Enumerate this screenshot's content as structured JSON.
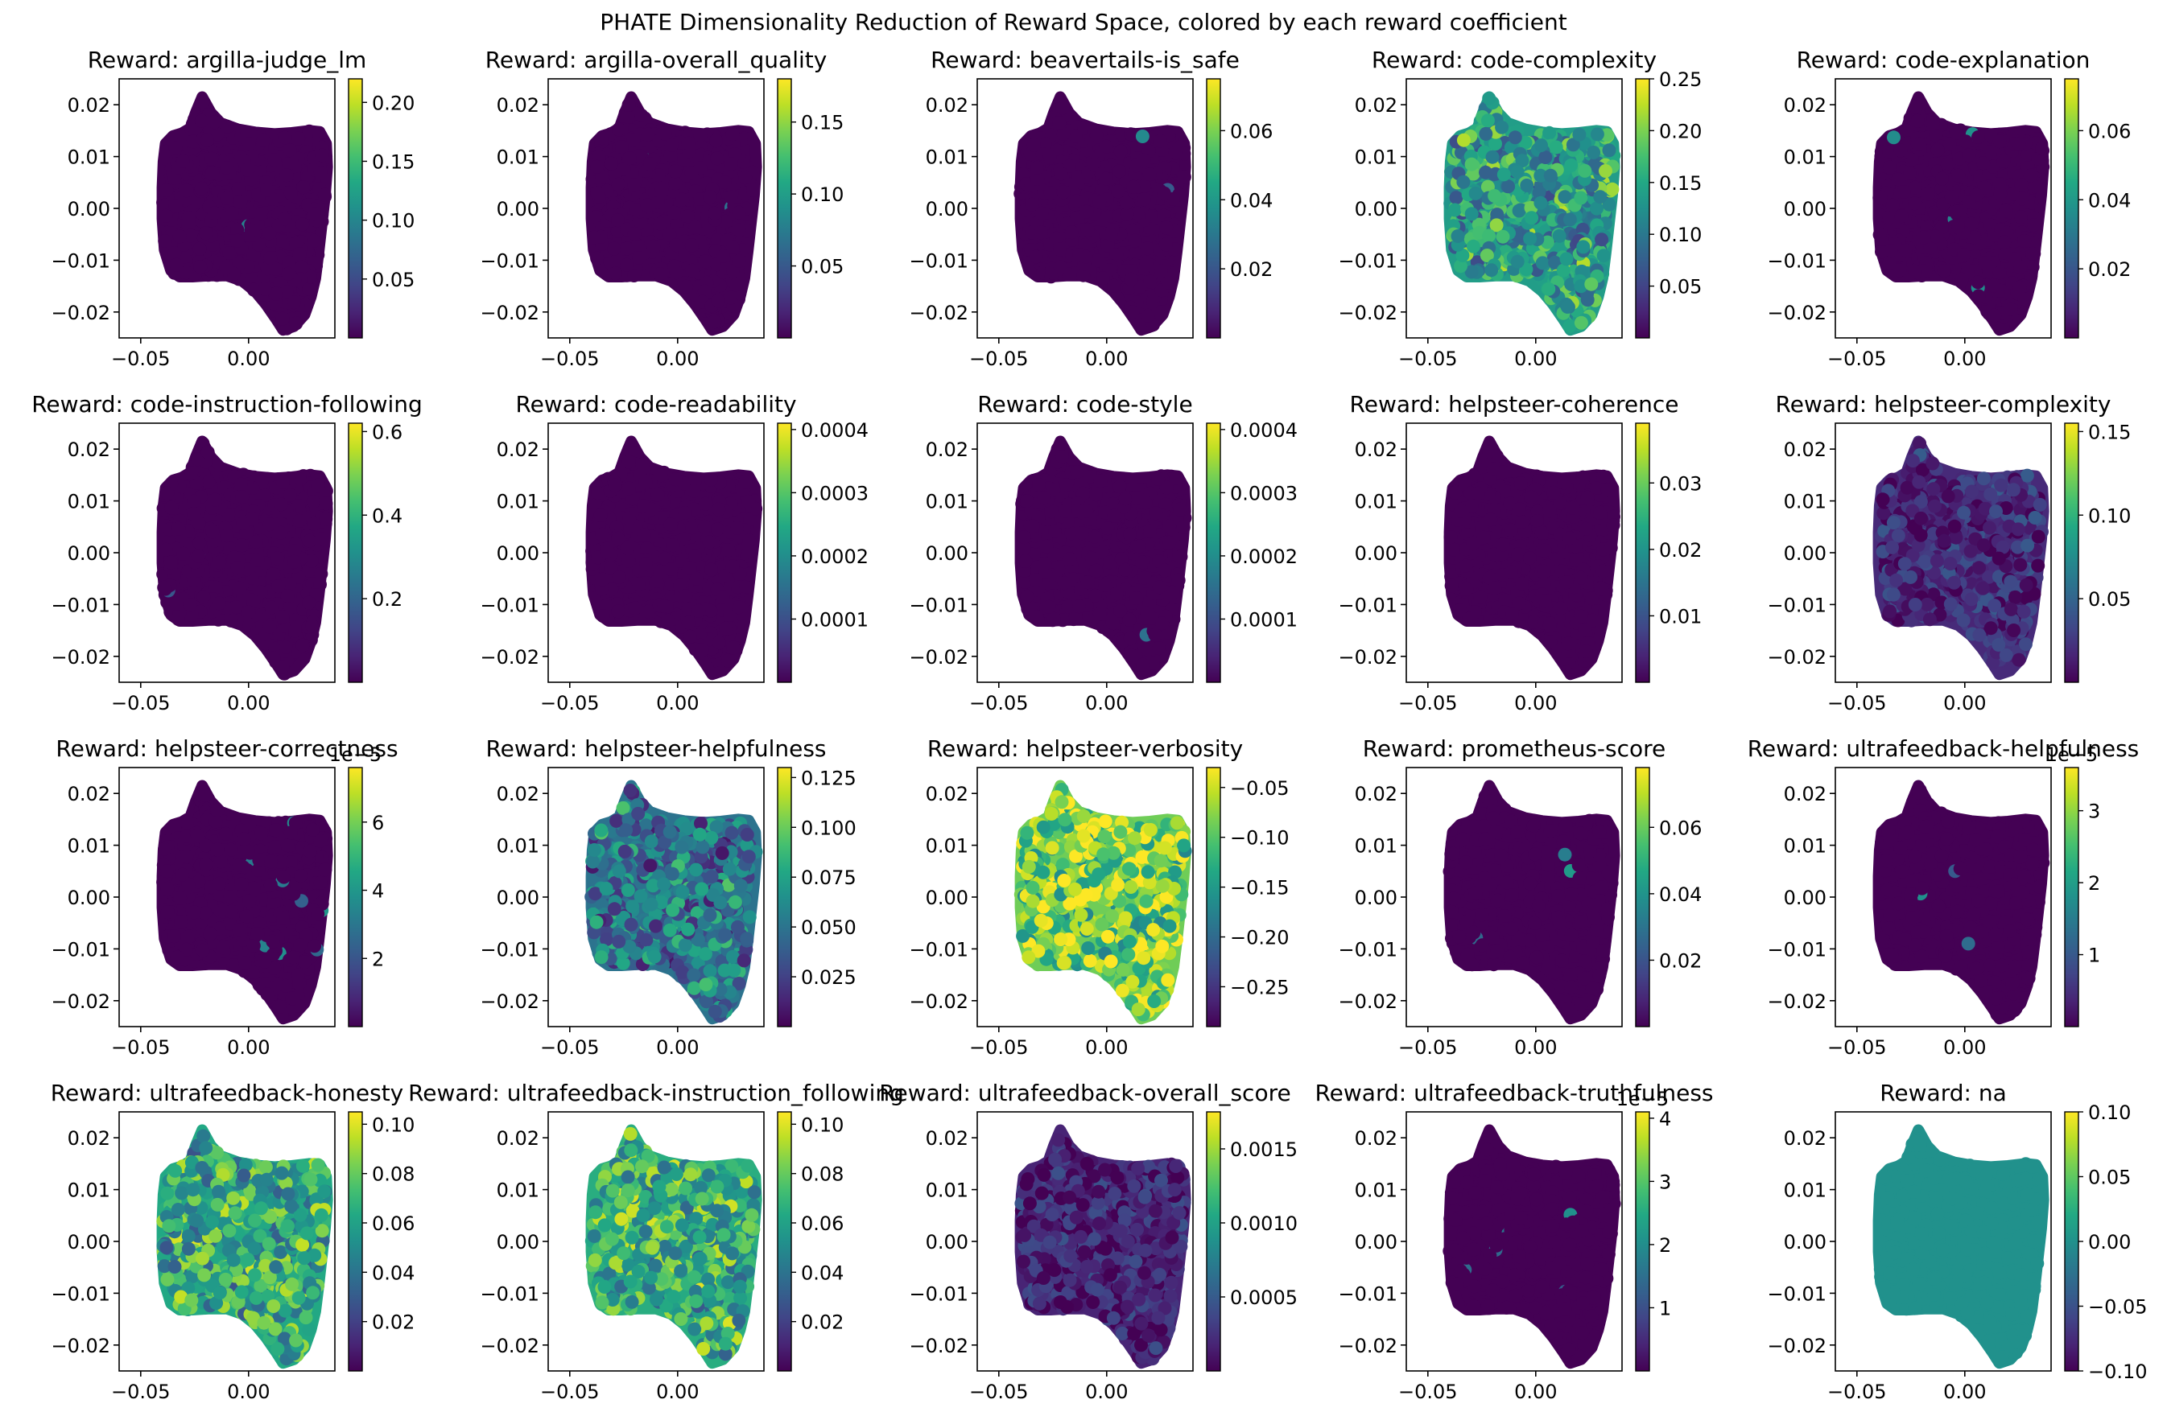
{
  "figure": {
    "title": "PHATE Dimensionality Reduction of Reward Space, colored by each reward coefficient"
  },
  "colors": {
    "viridis_stops": [
      "#440154",
      "#482475",
      "#414487",
      "#355f8d",
      "#2a788e",
      "#21918c",
      "#22a884",
      "#44bf70",
      "#7ad151",
      "#bddf26",
      "#fde725"
    ]
  },
  "chart_data": [
    {
      "type": "scatter",
      "title": "Reward: argilla-judge_lm",
      "xlim": [
        -0.06,
        0.04
      ],
      "ylim": [
        -0.025,
        0.025
      ],
      "x_ticks": [
        "-0.05",
        "0.00"
      ],
      "y_ticks": [
        "0.02",
        "0.01",
        "0.00",
        "-0.01",
        "-0.02"
      ],
      "color_range": [
        0.0,
        0.22
      ],
      "color_ticks": [
        0.05,
        0.1,
        0.15,
        0.2
      ],
      "color_tick_labels": [
        "0.05",
        "0.10",
        "0.15",
        "0.20"
      ],
      "color_offset_label": "",
      "fill_level": 0.0
    },
    {
      "type": "scatter",
      "title": "Reward: argilla-overall_quality",
      "xlim": [
        -0.06,
        0.04
      ],
      "ylim": [
        -0.025,
        0.025
      ],
      "x_ticks": [
        "-0.05",
        "0.00"
      ],
      "y_ticks": [
        "0.02",
        "0.01",
        "0.00",
        "-0.01",
        "-0.02"
      ],
      "color_range": [
        0.0,
        0.18
      ],
      "color_ticks": [
        0.05,
        0.1,
        0.15
      ],
      "color_tick_labels": [
        "0.05",
        "0.10",
        "0.15"
      ],
      "color_offset_label": "",
      "fill_level": 0.0
    },
    {
      "type": "scatter",
      "title": "Reward: beavertails-is_safe",
      "xlim": [
        -0.06,
        0.04
      ],
      "ylim": [
        -0.025,
        0.025
      ],
      "x_ticks": [
        "-0.05",
        "0.00"
      ],
      "y_ticks": [
        "0.02",
        "0.01",
        "0.00",
        "-0.01",
        "-0.02"
      ],
      "color_range": [
        0.0,
        0.075
      ],
      "color_ticks": [
        0.02,
        0.04,
        0.06
      ],
      "color_tick_labels": [
        "0.02",
        "0.04",
        "0.06"
      ],
      "color_offset_label": "",
      "fill_level": 0.0
    },
    {
      "type": "scatter",
      "title": "Reward: code-complexity",
      "xlim": [
        -0.06,
        0.04
      ],
      "ylim": [
        -0.025,
        0.025
      ],
      "x_ticks": [
        "-0.05",
        "0.00"
      ],
      "y_ticks": [
        "0.02",
        "0.01",
        "0.00",
        "-0.01",
        "-0.02"
      ],
      "color_range": [
        0.0,
        0.25
      ],
      "color_ticks": [
        0.05,
        0.1,
        0.15,
        0.2,
        0.25
      ],
      "color_tick_labels": [
        "0.05",
        "0.10",
        "0.15",
        "0.20",
        "0.25"
      ],
      "color_offset_label": "",
      "fill_level": 0.55
    },
    {
      "type": "scatter",
      "title": "Reward: code-explanation",
      "xlim": [
        -0.06,
        0.04
      ],
      "ylim": [
        -0.025,
        0.025
      ],
      "x_ticks": [
        "-0.05",
        "0.00"
      ],
      "y_ticks": [
        "0.02",
        "0.01",
        "0.00",
        "-0.01",
        "-0.02"
      ],
      "color_range": [
        0.0,
        0.075
      ],
      "color_ticks": [
        0.02,
        0.04,
        0.06
      ],
      "color_tick_labels": [
        "0.02",
        "0.04",
        "0.06"
      ],
      "color_offset_label": "",
      "fill_level": 0.0
    },
    {
      "type": "scatter",
      "title": "Reward: code-instruction-following",
      "xlim": [
        -0.06,
        0.04
      ],
      "ylim": [
        -0.025,
        0.025
      ],
      "x_ticks": [
        "-0.05",
        "0.00"
      ],
      "y_ticks": [
        "0.02",
        "0.01",
        "0.00",
        "-0.01",
        "-0.02"
      ],
      "color_range": [
        0.0,
        0.62
      ],
      "color_ticks": [
        0.2,
        0.4,
        0.6
      ],
      "color_tick_labels": [
        "0.2",
        "0.4",
        "0.6"
      ],
      "color_offset_label": "",
      "fill_level": 0.0
    },
    {
      "type": "scatter",
      "title": "Reward: code-readability",
      "xlim": [
        -0.06,
        0.04
      ],
      "ylim": [
        -0.025,
        0.025
      ],
      "x_ticks": [
        "-0.05",
        "0.00"
      ],
      "y_ticks": [
        "0.02",
        "0.01",
        "0.00",
        "-0.01",
        "-0.02"
      ],
      "color_range": [
        0.0,
        0.00041
      ],
      "color_ticks": [
        0.0001,
        0.0002,
        0.0003,
        0.0004
      ],
      "color_tick_labels": [
        "0.0001",
        "0.0002",
        "0.0003",
        "0.0004"
      ],
      "color_offset_label": "",
      "fill_level": 0.0
    },
    {
      "type": "scatter",
      "title": "Reward: code-style",
      "xlim": [
        -0.06,
        0.04
      ],
      "ylim": [
        -0.025,
        0.025
      ],
      "x_ticks": [
        "-0.05",
        "0.00"
      ],
      "y_ticks": [
        "0.02",
        "0.01",
        "0.00",
        "-0.01",
        "-0.02"
      ],
      "color_range": [
        0.0,
        0.00041
      ],
      "color_ticks": [
        0.0001,
        0.0002,
        0.0003,
        0.0004
      ],
      "color_tick_labels": [
        "0.0001",
        "0.0002",
        "0.0003",
        "0.0004"
      ],
      "color_offset_label": "",
      "fill_level": 0.0
    },
    {
      "type": "scatter",
      "title": "Reward: helpsteer-coherence",
      "xlim": [
        -0.06,
        0.04
      ],
      "ylim": [
        -0.025,
        0.025
      ],
      "x_ticks": [
        "-0.05",
        "0.00"
      ],
      "y_ticks": [
        "0.02",
        "0.01",
        "0.00",
        "-0.01",
        "-0.02"
      ],
      "color_range": [
        0.0,
        0.039
      ],
      "color_ticks": [
        0.01,
        0.02,
        0.03
      ],
      "color_tick_labels": [
        "0.01",
        "0.02",
        "0.03"
      ],
      "color_offset_label": "",
      "fill_level": 0.0
    },
    {
      "type": "scatter",
      "title": "Reward: helpsteer-complexity",
      "xlim": [
        -0.06,
        0.04
      ],
      "ylim": [
        -0.025,
        0.025
      ],
      "x_ticks": [
        "-0.05",
        "0.00"
      ],
      "y_ticks": [
        "0.02",
        "0.01",
        "0.00",
        "-0.01",
        "-0.02"
      ],
      "color_range": [
        0.0,
        0.155
      ],
      "color_ticks": [
        0.05,
        0.1,
        0.15
      ],
      "color_tick_labels": [
        "0.05",
        "0.10",
        "0.15"
      ],
      "color_offset_label": "",
      "fill_level": 0.12
    },
    {
      "type": "scatter",
      "title": "Reward: helpsteer-correctness",
      "xlim": [
        -0.06,
        0.04
      ],
      "ylim": [
        -0.025,
        0.025
      ],
      "x_ticks": [
        "-0.05",
        "0.00"
      ],
      "y_ticks": [
        "0.02",
        "0.01",
        "0.00",
        "-0.01",
        "-0.02"
      ],
      "color_range": [
        0.0,
        7.6
      ],
      "color_ticks": [
        2,
        4,
        6
      ],
      "color_tick_labels": [
        "2",
        "4",
        "6"
      ],
      "color_offset_label": "1e−5",
      "fill_level": 0.0
    },
    {
      "type": "scatter",
      "title": "Reward: helpsteer-helpfulness",
      "xlim": [
        -0.06,
        0.04
      ],
      "ylim": [
        -0.025,
        0.025
      ],
      "x_ticks": [
        "-0.05",
        "0.00"
      ],
      "y_ticks": [
        "0.02",
        "0.01",
        "0.00",
        "-0.01",
        "-0.02"
      ],
      "color_range": [
        0.0,
        0.13
      ],
      "color_ticks": [
        0.025,
        0.05,
        0.075,
        0.1,
        0.125
      ],
      "color_tick_labels": [
        "0.025",
        "0.050",
        "0.075",
        "0.100",
        "0.125"
      ],
      "color_offset_label": "",
      "fill_level": 0.38
    },
    {
      "type": "scatter",
      "title": "Reward: helpsteer-verbosity",
      "xlim": [
        -0.06,
        0.04
      ],
      "ylim": [
        -0.025,
        0.025
      ],
      "x_ticks": [
        "-0.05",
        "0.00"
      ],
      "y_ticks": [
        "0.02",
        "0.01",
        "0.00",
        "-0.01",
        "-0.02"
      ],
      "color_range": [
        -0.29,
        -0.03
      ],
      "color_ticks": [
        -0.25,
        -0.2,
        -0.15,
        -0.1,
        -0.05
      ],
      "color_tick_labels": [
        "−0.25",
        "−0.20",
        "−0.15",
        "−0.10",
        "−0.05"
      ],
      "color_offset_label": "",
      "fill_level": 0.78
    },
    {
      "type": "scatter",
      "title": "Reward: prometheus-score",
      "xlim": [
        -0.06,
        0.04
      ],
      "ylim": [
        -0.025,
        0.025
      ],
      "x_ticks": [
        "-0.05",
        "0.00"
      ],
      "y_ticks": [
        "0.02",
        "0.01",
        "0.00",
        "-0.01",
        "-0.02"
      ],
      "color_range": [
        0.0,
        0.078
      ],
      "color_ticks": [
        0.02,
        0.04,
        0.06
      ],
      "color_tick_labels": [
        "0.02",
        "0.04",
        "0.06"
      ],
      "color_offset_label": "",
      "fill_level": 0.0
    },
    {
      "type": "scatter",
      "title": "Reward: ultrafeedback-helpfulness",
      "xlim": [
        -0.06,
        0.04
      ],
      "ylim": [
        -0.025,
        0.025
      ],
      "x_ticks": [
        "-0.05",
        "0.00"
      ],
      "y_ticks": [
        "0.02",
        "0.01",
        "0.00",
        "-0.01",
        "-0.02"
      ],
      "color_range": [
        0.0,
        3.6
      ],
      "color_ticks": [
        1,
        2,
        3
      ],
      "color_tick_labels": [
        "1",
        "2",
        "3"
      ],
      "color_offset_label": "1e−5",
      "fill_level": 0.0
    },
    {
      "type": "scatter",
      "title": "Reward: ultrafeedback-honesty",
      "xlim": [
        -0.06,
        0.04
      ],
      "ylim": [
        -0.025,
        0.025
      ],
      "x_ticks": [
        "-0.05",
        "0.00"
      ],
      "y_ticks": [
        "0.02",
        "0.01",
        "0.00",
        "-0.01",
        "-0.02"
      ],
      "color_range": [
        0.0,
        0.105
      ],
      "color_ticks": [
        0.02,
        0.04,
        0.06,
        0.08,
        0.1
      ],
      "color_tick_labels": [
        "0.02",
        "0.04",
        "0.06",
        "0.08",
        "0.10"
      ],
      "color_offset_label": "",
      "fill_level": 0.6
    },
    {
      "type": "scatter",
      "title": "Reward: ultrafeedback-instruction_following",
      "xlim": [
        -0.06,
        0.04
      ],
      "ylim": [
        -0.025,
        0.025
      ],
      "x_ticks": [
        "-0.05",
        "0.00"
      ],
      "y_ticks": [
        "0.02",
        "0.01",
        "0.00",
        "-0.01",
        "-0.02"
      ],
      "color_range": [
        0.0,
        0.105
      ],
      "color_ticks": [
        0.02,
        0.04,
        0.06,
        0.08,
        0.1
      ],
      "color_tick_labels": [
        "0.02",
        "0.04",
        "0.06",
        "0.08",
        "0.10"
      ],
      "color_offset_label": "",
      "fill_level": 0.62
    },
    {
      "type": "scatter",
      "title": "Reward: ultrafeedback-overall_score",
      "xlim": [
        -0.06,
        0.04
      ],
      "ylim": [
        -0.025,
        0.025
      ],
      "x_ticks": [
        "-0.05",
        "0.00"
      ],
      "y_ticks": [
        "0.02",
        "0.01",
        "0.00",
        "-0.01",
        "-0.02"
      ],
      "color_range": [
        0.0,
        0.00175
      ],
      "color_ticks": [
        0.0005,
        0.001,
        0.0015
      ],
      "color_tick_labels": [
        "0.0005",
        "0.0010",
        "0.0015"
      ],
      "color_offset_label": "",
      "fill_level": 0.1
    },
    {
      "type": "scatter",
      "title": "Reward: ultrafeedback-truthfulness",
      "xlim": [
        -0.06,
        0.04
      ],
      "ylim": [
        -0.025,
        0.025
      ],
      "x_ticks": [
        "-0.05",
        "0.00"
      ],
      "y_ticks": [
        "0.02",
        "0.01",
        "0.00",
        "-0.01",
        "-0.02"
      ],
      "color_range": [
        0.0,
        4.1
      ],
      "color_ticks": [
        1,
        2,
        3,
        4
      ],
      "color_tick_labels": [
        "1",
        "2",
        "3",
        "4"
      ],
      "color_offset_label": "1e−5",
      "fill_level": 0.0
    },
    {
      "type": "scatter",
      "title": "Reward: na",
      "xlim": [
        -0.06,
        0.04
      ],
      "ylim": [
        -0.025,
        0.025
      ],
      "x_ticks": [
        "-0.05",
        "0.00"
      ],
      "y_ticks": [
        "0.02",
        "0.01",
        "0.00",
        "-0.01",
        "-0.02"
      ],
      "color_range": [
        -0.1,
        0.1
      ],
      "color_ticks": [
        -0.1,
        -0.05,
        0.0,
        0.05,
        0.1
      ],
      "color_tick_labels": [
        "−0.10",
        "−0.05",
        "0.00",
        "0.05",
        "0.10"
      ],
      "color_offset_label": "",
      "fill_level": 0.5
    }
  ]
}
